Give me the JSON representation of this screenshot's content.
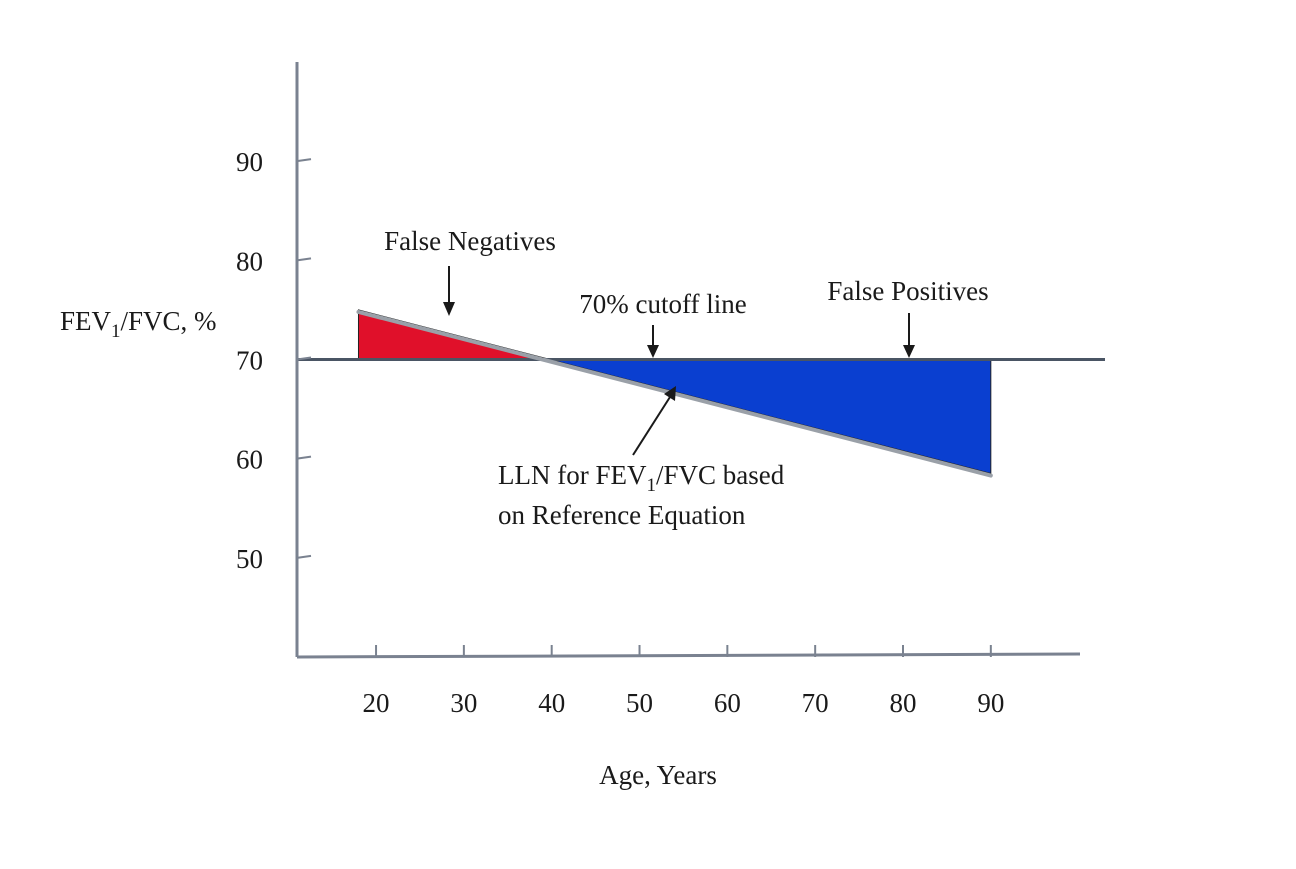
{
  "chart_data": {
    "type": "area",
    "xlabel": "Age, Years",
    "ylabel": "FEV₁/FVC, %",
    "ylabel_parts": {
      "pre": "FEV",
      "sub": "1",
      "post": "/FVC, %"
    },
    "xlim": [
      11,
      103
    ],
    "ylim": [
      40,
      100
    ],
    "x_ticks": [
      20,
      30,
      40,
      50,
      60,
      70,
      80,
      90
    ],
    "y_ticks": [
      50,
      60,
      70,
      80,
      90
    ],
    "grid": false,
    "legend": "none",
    "cutoff": {
      "value": 70
    },
    "lln": {
      "x": [
        18,
        90
      ],
      "y": [
        75,
        58.5
      ]
    },
    "regions": [
      {
        "key": "false_negatives",
        "x_start": 18,
        "x_end": 39,
        "color": "#e0102a"
      },
      {
        "key": "false_positives",
        "x_start": 39,
        "x_end": 90,
        "color": "#0a3fd0"
      }
    ],
    "annotations": {
      "false_negatives": "False Negatives",
      "cutoff": "70% cutoff line",
      "false_positives": "False Positives",
      "lln_parts": {
        "pre": "LLN for FEV",
        "sub": "1",
        "post": "/FVC based",
        "line2": "on Reference Equation"
      }
    },
    "colors": {
      "axis": "#7a8290",
      "cutoff_line": "#4a5564",
      "lln_line": "#9aa0a8"
    }
  }
}
